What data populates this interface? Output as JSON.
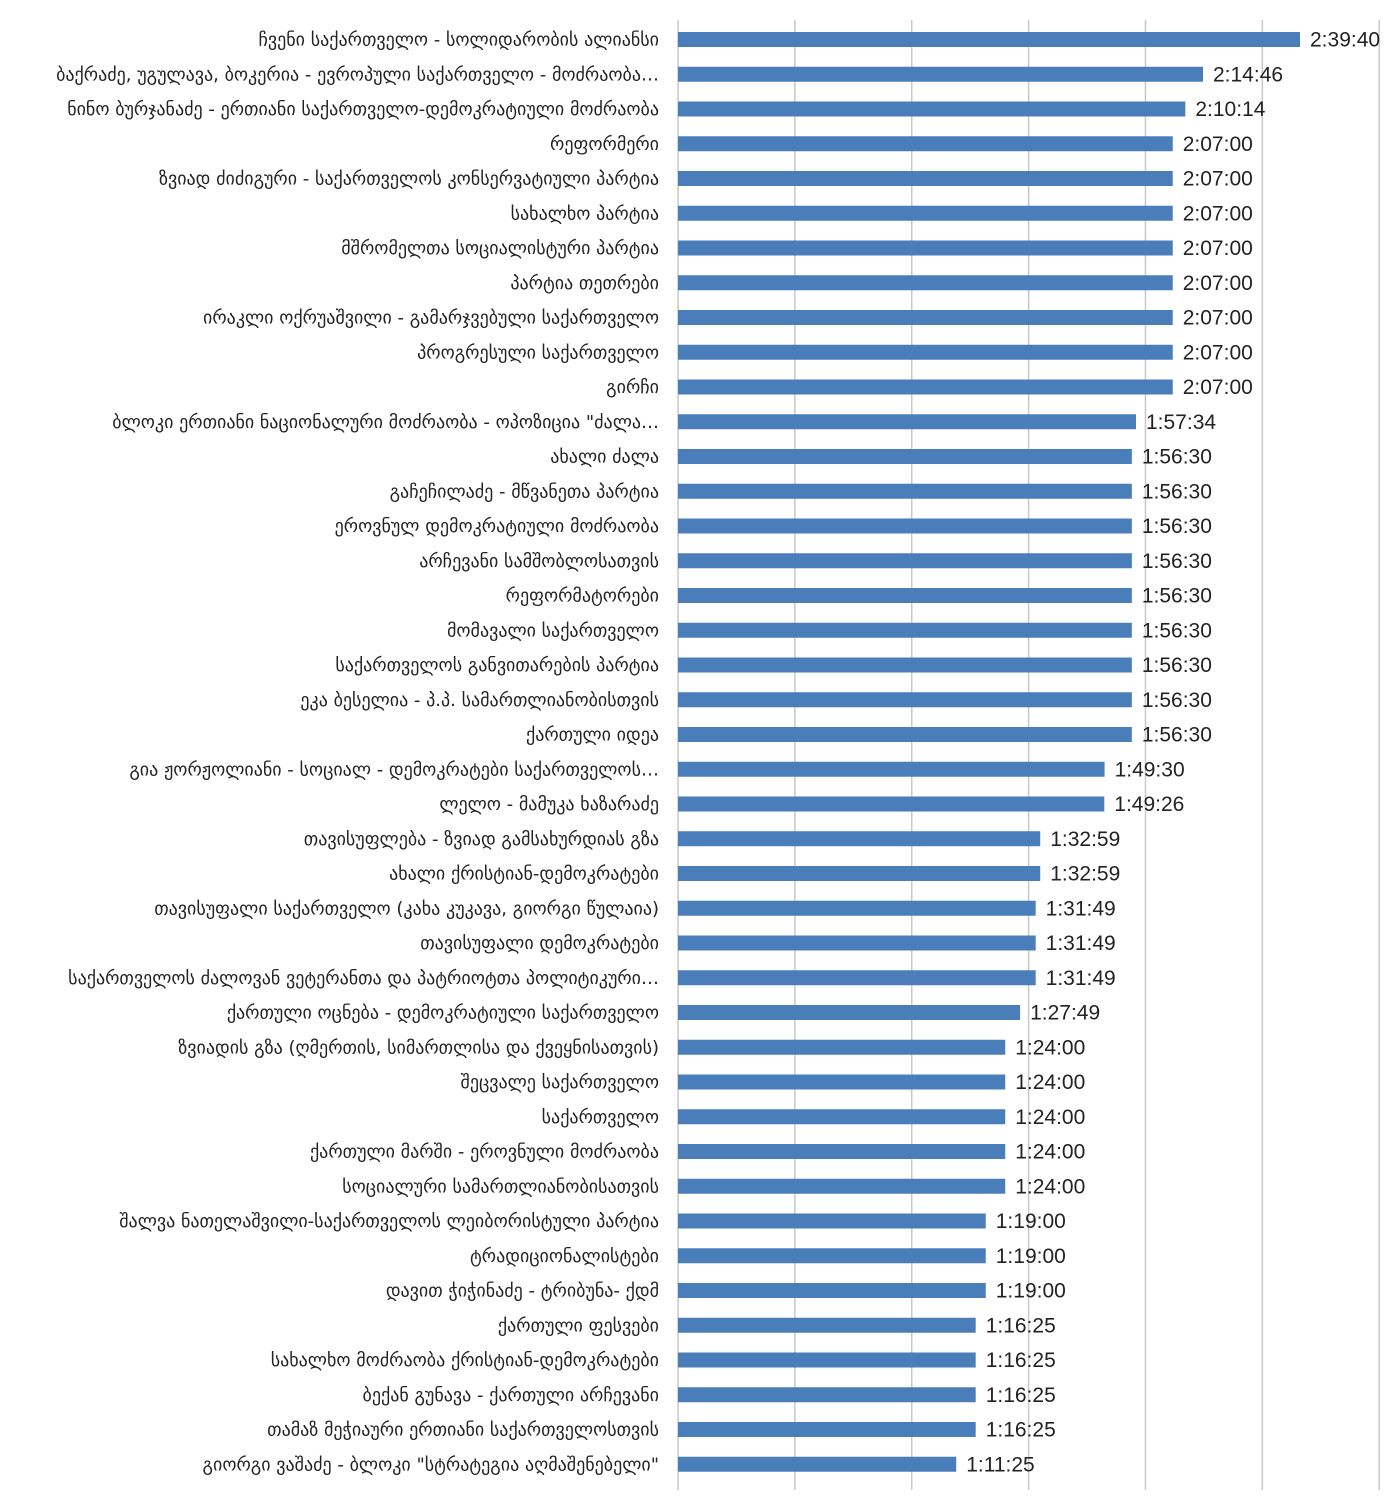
{
  "chart_data": {
    "type": "bar",
    "orientation": "horizontal",
    "value_format": "h:mm:ss",
    "grid": true,
    "legend": "none",
    "bar_color": "#4a7ebb",
    "xlim_seconds": [
      0,
      10800
    ],
    "categories": [
      "ჩვენი საქართველო - სოლიდარობის ალიანსი",
      "ბაქრაძე, უგულავა, ბოკერია - ევროპული საქართველო - მოძრაობა…",
      "ნინო ბურჯანაძე - ერთიანი საქართველო-დემოკრატიული მოძრაობა",
      "რეფორმერი",
      "ზვიად ძიძიგური - საქართველოს კონსერვატიული პარტია",
      "სახალხო პარტია",
      "მშრომელთა სოციალისტური პარტია",
      "პარტია თეთრები",
      "ირაკლი ოქრუაშვილი - გამარჯვებული საქართველო",
      "პროგრესული საქართველო",
      "გირჩი",
      "ბლოკი ერთიანი ნაციონალური მოძრაობა - ოპოზიცია \"ძალა…",
      "ახალი ძალა",
      "გაჩეჩილაძე - მწვანეთა პარტია",
      "ეროვნულ დემოკრატიული მოძრაობა",
      "არჩევანი სამშობლოსათვის",
      "რეფორმატორები",
      "მომავალი საქართველო",
      "საქართველოს განვითარების პარტია",
      "ეკა ბესელია - პ.პ. სამართლიანობისთვის",
      "ქართული იდეა",
      "გია ჟორჟოლიანი - სოციალ - დემოკრატები საქართველოს…",
      "ლელო - მამუკა ხაზარაძე",
      "თავისუფლება - ზვიად გამსახურდიას გზა",
      "ახალი ქრისტიან-დემოკრატები",
      "თავისუფალი საქართველო (კახა კუკავა, გიორგი წულაია)",
      "თავისუფალი დემოკრატები",
      "საქართველოს ძალოვან ვეტერანთა და პატრიოტთა პოლიტიკური…",
      "ქართული ოცნება - დემოკრატიული საქართველო",
      "ზვიადის გზა (ღმერთის, სიმართლისა და ქვეყნისათვის)",
      "შეცვალე საქართველო",
      "საქართველო",
      "ქართული მარში - ეროვნული მოძრაობა",
      "სოციალური სამართლიანობისათვის",
      "შალვა ნათელაშვილი-საქართველოს ლეიბორისტული პარტია",
      "ტრადიციონალისტები",
      "დავით ჭიჭინაძე - ტრიბუნა- ქდმ",
      "ქართული ფესვები",
      "სახალხო მოძრაობა ქრისტიან-დემოკრატები",
      "ბექან გუნავა - ქართული არჩევანი",
      "თამაზ მეჭიაური ერთიანი საქართველოსთვის",
      "გიორგი ვაშაძე - ბლოკი \"სტრატეგია აღმაშენებელი\""
    ],
    "values": [
      "2:39:40",
      "2:14:46",
      "2:10:14",
      "2:07:00",
      "2:07:00",
      "2:07:00",
      "2:07:00",
      "2:07:00",
      "2:07:00",
      "2:07:00",
      "2:07:00",
      "1:57:34",
      "1:56:30",
      "1:56:30",
      "1:56:30",
      "1:56:30",
      "1:56:30",
      "1:56:30",
      "1:56:30",
      "1:56:30",
      "1:56:30",
      "1:49:30",
      "1:49:26",
      "1:32:59",
      "1:32:59",
      "1:31:49",
      "1:31:49",
      "1:31:49",
      "1:27:49",
      "1:24:00",
      "1:24:00",
      "1:24:00",
      "1:24:00",
      "1:24:00",
      "1:19:00",
      "1:19:00",
      "1:19:00",
      "1:16:25",
      "1:16:25",
      "1:16:25",
      "1:16:25",
      "1:11:25"
    ]
  }
}
